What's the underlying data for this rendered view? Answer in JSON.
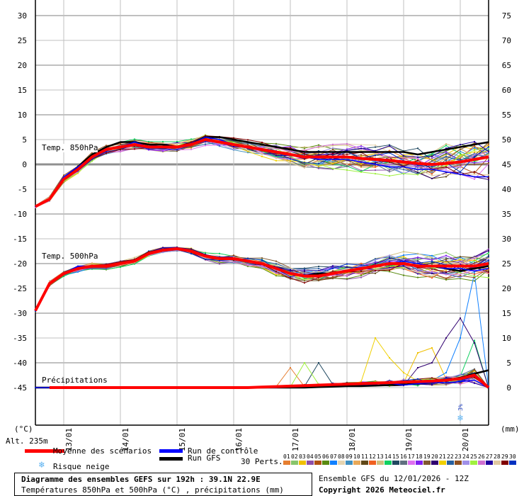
{
  "chart_data": {
    "type": "line",
    "title": "Diagramme des ensembles GEFS sur 192h : 39.1N 22.9E",
    "subtitle": "Températures 850hPa et 500hPa (°C) , précipitations (mm)",
    "run_info": "Ensemble GFS du 12/01/2026 - 12Z",
    "copyright": "Copyright 2026 Meteociel.fr",
    "left_axis": {
      "unit": "(°C)",
      "range": [
        -45,
        30
      ],
      "ticks": [
        "30",
        "25",
        "20",
        "15",
        "10",
        "5",
        "0",
        "-5",
        "-10",
        "-15",
        "-20",
        "-25",
        "-30",
        "-35",
        "-40",
        "-45"
      ]
    },
    "right_axis": {
      "unit": "(mm)",
      "range": [
        0,
        75
      ],
      "ticks": [
        "75",
        "70",
        "65",
        "60",
        "55",
        "50",
        "45",
        "40",
        "35",
        "30",
        "25",
        "20",
        "15",
        "10",
        "5",
        "0"
      ]
    },
    "altitude": "Alt. 235m",
    "x_ticks": [
      "13/01",
      "14/01",
      "15/01",
      "16/01",
      "17/01",
      "18/01",
      "19/01",
      "20/01"
    ],
    "time_step_hours": 6,
    "panel_labels": {
      "t850": "Temp. 850hPa",
      "t500": "Temp. 500hPa",
      "precip": "Précipitations"
    },
    "t850": {
      "mean": [
        -8.5,
        -7,
        -3,
        -1,
        1.5,
        3,
        3.5,
        4,
        3.5,
        3.5,
        3.5,
        4,
        5,
        4.5,
        4,
        3.5,
        3,
        2.5,
        2,
        1.5,
        1.5,
        1.5,
        1.5,
        1.2,
        1,
        0.8,
        0.5,
        0.2,
        0,
        0.2,
        0.5,
        1,
        1.5
      ],
      "control": [
        -8.5,
        -7,
        -2.5,
        -0.5,
        1.5,
        3,
        3.5,
        4.5,
        3.5,
        3.5,
        3.5,
        4,
        5.5,
        5,
        4,
        3.5,
        3,
        2.5,
        2,
        1.5,
        1,
        1,
        1,
        0.5,
        0,
        -0.5,
        -0.5,
        -1,
        -1,
        -1.5,
        -2,
        -2.5,
        -2.5
      ],
      "gfs": [
        -8.5,
        -7,
        -3,
        -0.5,
        2,
        3.5,
        4.5,
        4.5,
        4,
        4,
        3.5,
        4,
        5.5,
        5.5,
        5,
        4.5,
        4,
        3.5,
        3,
        2.5,
        2.5,
        2.5,
        2.5,
        2.5,
        2.5,
        2.5,
        2.5,
        2,
        2.5,
        3,
        3.5,
        4,
        4.5
      ],
      "spread": [
        0.3,
        0.5,
        0.7,
        0.8,
        0.8,
        0.8,
        0.9,
        0.9,
        0.9,
        0.9,
        0.9,
        0.9,
        1,
        1,
        1.1,
        1.2,
        1.3,
        1.5,
        1.7,
        1.9,
        2,
        2.1,
        2.2,
        2.3,
        2.4,
        2.6,
        2.8,
        3,
        3.2,
        3.4,
        3.6,
        3.8,
        4
      ]
    },
    "t500": {
      "mean": [
        -29.5,
        -24,
        -22,
        -21,
        -20.5,
        -20.5,
        -20,
        -19.5,
        -18,
        -17.3,
        -17,
        -17.5,
        -18.5,
        -19,
        -19,
        -19.5,
        -20,
        -21,
        -22,
        -22.5,
        -22.5,
        -22,
        -21.5,
        -21,
        -20.5,
        -20,
        -20,
        -20.5,
        -20.5,
        -20.5,
        -20.5,
        -20.5,
        -20
      ],
      "control": [
        -29.5,
        -24,
        -22,
        -20.5,
        -20.5,
        -20.5,
        -20,
        -19.5,
        -18,
        -17.3,
        -17,
        -17.5,
        -18.5,
        -19,
        -19,
        -19.5,
        -20,
        -21,
        -22,
        -22.5,
        -22.5,
        -22,
        -21.5,
        -21,
        -20.5,
        -20,
        -19.5,
        -20,
        -20.5,
        -21,
        -21,
        -21.5,
        -21
      ],
      "gfs": [
        -29.5,
        -24,
        -22,
        -21,
        -20.5,
        -20.5,
        -20,
        -19.5,
        -18,
        -17.3,
        -17,
        -17.5,
        -18.5,
        -19,
        -19,
        -19.5,
        -20,
        -21,
        -22,
        -22.5,
        -22,
        -22,
        -21.5,
        -21,
        -20.5,
        -20,
        -20,
        -20.5,
        -20.5,
        -21,
        -21.5,
        -21,
        -20.5
      ],
      "spread": [
        0.3,
        0.5,
        0.5,
        0.6,
        0.6,
        0.6,
        0.6,
        0.6,
        0.6,
        0.6,
        0.6,
        0.7,
        0.8,
        0.9,
        1,
        1.1,
        1.2,
        1.3,
        1.4,
        1.5,
        1.6,
        1.6,
        1.7,
        1.7,
        1.8,
        1.9,
        2,
        2.1,
        2.2,
        2.3,
        2.4,
        2.5,
        2.6
      ]
    },
    "precip": {
      "mean": [
        0,
        0,
        0,
        0,
        0,
        0,
        0,
        0,
        0,
        0,
        0,
        0,
        0,
        0,
        0,
        0,
        0.1,
        0.2,
        0.3,
        0.4,
        0.5,
        0.6,
        0.7,
        0.8,
        0.9,
        1,
        1.1,
        1.2,
        1.3,
        1.5,
        1.8,
        2.5,
        0
      ],
      "control": [
        0,
        0,
        0,
        0,
        0,
        0,
        0,
        0,
        0,
        0,
        0,
        0,
        0,
        0,
        0,
        0,
        0,
        0,
        0.2,
        0.3,
        0.5,
        0.6,
        0.8,
        0.6,
        0.7,
        0.9,
        0.5,
        0.8,
        1,
        1,
        1.2,
        1.5,
        0
      ],
      "gfs": [
        0,
        0,
        0,
        0,
        0,
        0,
        0,
        0,
        0,
        0,
        0,
        0,
        0,
        0,
        0,
        0,
        0,
        0,
        0,
        0,
        0.1,
        0.2,
        0.3,
        0.3,
        0.4,
        0.5,
        0.6,
        0.8,
        1,
        1.5,
        2,
        2.8,
        3.5
      ],
      "notable_members": [
        {
          "member": 1,
          "peaks": {
            "18": 4
          }
        },
        {
          "member": 25,
          "peaks": {
            "19": 5
          }
        },
        {
          "member": 15,
          "peaks": {
            "20": 5
          }
        },
        {
          "member": 21,
          "peaks": {
            "24": 10,
            "25": 6,
            "26": 3
          }
        },
        {
          "member": 3,
          "peaks": {
            "27": 7,
            "28": 8
          }
        },
        {
          "member": 20,
          "peaks": {
            "27": 4,
            "28": 5,
            "29": 10,
            "30": 14,
            "31": 9
          }
        },
        {
          "member": 7,
          "peaks": {
            "29": 3,
            "30": 10,
            "31": 23
          }
        },
        {
          "member": 14,
          "peaks": {
            "31": 9.5
          }
        }
      ]
    },
    "snow_risk": {
      "label": "3%",
      "step": 30
    },
    "legend": {
      "mean": "Moyenne des scénarios",
      "control": "Run de contrôle",
      "gfs": "Run GFS",
      "snow": "Risque neige",
      "perts": "30 Perts."
    },
    "colors": {
      "mean": "#ff0000",
      "control": "#0000ff",
      "gfs": "#000000"
    },
    "members": [
      {
        "id": "01",
        "color": "#e67e30"
      },
      {
        "id": "02",
        "color": "#88c46a"
      },
      {
        "id": "03",
        "color": "#f0c000"
      },
      {
        "id": "04",
        "color": "#8e4fa8"
      },
      {
        "id": "05",
        "color": "#b05010"
      },
      {
        "id": "06",
        "color": "#5a8a10"
      },
      {
        "id": "07",
        "color": "#1080ff"
      },
      {
        "id": "08",
        "color": "#e6d4b0"
      },
      {
        "id": "09",
        "color": "#4090c0"
      },
      {
        "id": "10",
        "color": "#e8a858"
      },
      {
        "id": "11",
        "color": "#604818"
      },
      {
        "id": "12",
        "color": "#f06020"
      },
      {
        "id": "13",
        "color": "#d0c080"
      },
      {
        "id": "14",
        "color": "#10d060"
      },
      {
        "id": "15",
        "color": "#204860"
      },
      {
        "id": "16",
        "color": "#607080"
      },
      {
        "id": "17",
        "color": "#e070f0"
      },
      {
        "id": "18",
        "color": "#8020f0"
      },
      {
        "id": "19",
        "color": "#805830"
      },
      {
        "id": "20",
        "color": "#300070"
      },
      {
        "id": "21",
        "color": "#f0d000"
      },
      {
        "id": "22",
        "color": "#2860a0"
      },
      {
        "id": "23",
        "color": "#905020"
      },
      {
        "id": "24",
        "color": "#a090e8"
      },
      {
        "id": "25",
        "color": "#a0f040"
      },
      {
        "id": "26",
        "color": "#d070d0"
      },
      {
        "id": "27",
        "color": "#2000a0"
      },
      {
        "id": "28",
        "color": "#e0c8a0"
      },
      {
        "id": "29",
        "color": "#800000"
      },
      {
        "id": "30",
        "color": "#0030c0"
      }
    ]
  }
}
